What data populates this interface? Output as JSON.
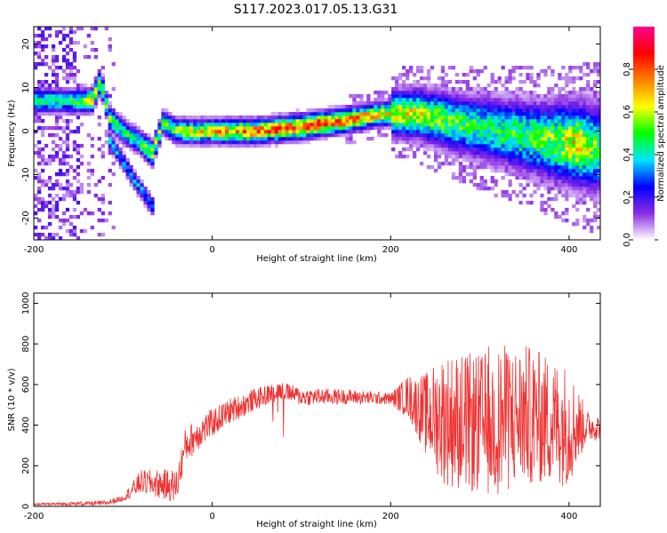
{
  "title": "S117.2023.017.05.13.G31",
  "chart_data": [
    {
      "type": "heatmap",
      "xlabel": "Height of straight line (km)",
      "ylabel": "Frequency (Hz)",
      "xlim": [
        -200,
        435
      ],
      "ylim": [
        -25,
        24
      ],
      "x_ticks": [
        "-200",
        "0",
        "200",
        "400"
      ],
      "y_ticks": [
        "-20",
        "-10",
        "0",
        "10",
        "20"
      ],
      "colorbar": {
        "label": "Normalized spectral amplitude",
        "range": [
          0,
          1
        ],
        "ticks": [
          "0.0",
          "0.2",
          "0.4",
          "0.6",
          "0.8"
        ],
        "colors": [
          "#ffffff",
          "#8a2be2",
          "#0000ff",
          "#00e5ff",
          "#00ff00",
          "#ffff00",
          "#ff8000",
          "#ff0000",
          "#ff0090"
        ]
      },
      "ridge": [
        {
          "x": -155,
          "y": 7,
          "a": 0.45
        },
        {
          "x": -135,
          "y": 7,
          "a": 0.6
        },
        {
          "x": -125,
          "y": 11.5,
          "a": 0.45
        },
        {
          "x": -115,
          "y": 3,
          "a": 0.5
        },
        {
          "x": -100,
          "y": 0,
          "a": 0.45
        },
        {
          "x": -85,
          "y": -2,
          "a": 0.45
        },
        {
          "x": -67,
          "y": -5,
          "a": 0.6
        },
        {
          "x": -55,
          "y": 2,
          "a": 0.45
        },
        {
          "x": -40,
          "y": 0,
          "a": 0.55
        },
        {
          "x": 0,
          "y": 0,
          "a": 0.65
        },
        {
          "x": 50,
          "y": 0,
          "a": 0.75
        },
        {
          "x": 100,
          "y": 1,
          "a": 0.8
        },
        {
          "x": 150,
          "y": 2.5,
          "a": 0.75
        },
        {
          "x": 190,
          "y": 4,
          "a": 0.65
        },
        {
          "x": 230,
          "y": 4,
          "a": 0.6
        },
        {
          "x": 270,
          "y": 2,
          "a": 0.5
        },
        {
          "x": 320,
          "y": 0,
          "a": 0.45
        },
        {
          "x": 370,
          "y": -2,
          "a": 0.5
        },
        {
          "x": 410,
          "y": -3,
          "a": 0.65
        },
        {
          "x": 435,
          "y": -4,
          "a": 0.5
        }
      ],
      "lower_branch": [
        {
          "x": -115,
          "y": -2
        },
        {
          "x": -100,
          "y": -7
        },
        {
          "x": -85,
          "y": -12
        },
        {
          "x": -68,
          "y": -17
        }
      ]
    },
    {
      "type": "line",
      "xlabel": "Height of straight line (km)",
      "ylabel": "SNR (10 * v/v)",
      "xlim": [
        -200,
        435
      ],
      "ylim": [
        0,
        1050
      ],
      "x_ticks": [
        "-200",
        "0",
        "200",
        "400"
      ],
      "y_ticks": [
        "0",
        "200",
        "400",
        "600",
        "800",
        "1000"
      ],
      "color": "#ee3333",
      "envelope": [
        {
          "x": -200,
          "y": 10
        },
        {
          "x": -120,
          "y": 15
        },
        {
          "x": -100,
          "y": 40
        },
        {
          "x": -80,
          "y": 120
        },
        {
          "x": -40,
          "y": 100
        },
        {
          "x": -30,
          "y": 300
        },
        {
          "x": -10,
          "y": 380
        },
        {
          "x": 20,
          "y": 470
        },
        {
          "x": 50,
          "y": 530
        },
        {
          "x": 75,
          "y": 570
        },
        {
          "x": 100,
          "y": 540
        },
        {
          "x": 150,
          "y": 540
        },
        {
          "x": 200,
          "y": 530
        },
        {
          "x": 220,
          "y": 540
        },
        {
          "x": 240,
          "y": 450
        },
        {
          "x": 300,
          "y": 400
        },
        {
          "x": 350,
          "y": 450
        },
        {
          "x": 400,
          "y": 400
        },
        {
          "x": 435,
          "y": 390
        }
      ],
      "noise_envelope": [
        {
          "x": -200,
          "y": 5
        },
        {
          "x": -100,
          "y": 15
        },
        {
          "x": -80,
          "y": 60
        },
        {
          "x": -30,
          "y": 90
        },
        {
          "x": 0,
          "y": 70
        },
        {
          "x": 60,
          "y": 50
        },
        {
          "x": 200,
          "y": 30
        },
        {
          "x": 230,
          "y": 150
        },
        {
          "x": 260,
          "y": 330
        },
        {
          "x": 330,
          "y": 370
        },
        {
          "x": 400,
          "y": 300
        },
        {
          "x": 420,
          "y": 80
        },
        {
          "x": 435,
          "y": 60
        }
      ]
    }
  ]
}
